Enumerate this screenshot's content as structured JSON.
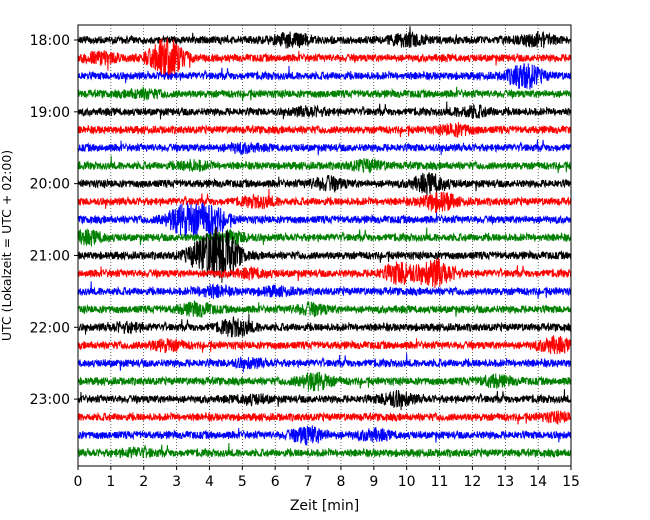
{
  "chart_data": {
    "type": "line",
    "title": "",
    "xlabel": "Zeit  [min]",
    "ylabel": "UTC (Lokalzeit = UTC + 02:00)",
    "xlim": [
      0,
      15
    ],
    "x_ticks": [
      "0",
      "1",
      "2",
      "3",
      "4",
      "5",
      "6",
      "7",
      "8",
      "9",
      "10",
      "11",
      "12",
      "13",
      "14",
      "15"
    ],
    "y_tick_labels": [
      "18:00",
      "19:00",
      "20:00",
      "21:00",
      "22:00",
      "23:00"
    ],
    "grid": {
      "vertical": true,
      "horizontal": false,
      "style": "dotted"
    },
    "trace_interval_minutes": 15,
    "colors": [
      "#000000",
      "#ff0000",
      "#0000ff",
      "#008000"
    ],
    "traces": [
      {
        "start": "18:00",
        "color": "#000000",
        "bursts": [
          {
            "t": 6.5,
            "amp": 6
          },
          {
            "t": 10.0,
            "amp": 5
          },
          {
            "t": 14.0,
            "amp": 5
          }
        ]
      },
      {
        "start": "18:15",
        "color": "#ff0000",
        "bursts": [
          {
            "t": 2.7,
            "amp": 18
          },
          {
            "t": 0.7,
            "amp": 4
          }
        ]
      },
      {
        "start": "18:30",
        "color": "#0000ff",
        "bursts": [
          {
            "t": 13.6,
            "amp": 11
          }
        ]
      },
      {
        "start": "18:45",
        "color": "#008000",
        "bursts": [
          {
            "t": 2.0,
            "amp": 3
          }
        ]
      },
      {
        "start": "19:00",
        "color": "#000000",
        "bursts": [
          {
            "t": 7.0,
            "amp": 3
          },
          {
            "t": 12.0,
            "amp": 4
          }
        ]
      },
      {
        "start": "19:15",
        "color": "#ff0000",
        "bursts": [
          {
            "t": 11.5,
            "amp": 4
          }
        ]
      },
      {
        "start": "19:30",
        "color": "#0000ff",
        "bursts": [
          {
            "t": 5.0,
            "amp": 3
          }
        ]
      },
      {
        "start": "19:45",
        "color": "#008000",
        "bursts": [
          {
            "t": 3.5,
            "amp": 3
          },
          {
            "t": 8.8,
            "amp": 4
          }
        ]
      },
      {
        "start": "20:00",
        "color": "#000000",
        "bursts": [
          {
            "t": 7.6,
            "amp": 5
          },
          {
            "t": 10.7,
            "amp": 8
          }
        ]
      },
      {
        "start": "20:15",
        "color": "#ff0000",
        "bursts": [
          {
            "t": 11.0,
            "amp": 8
          },
          {
            "t": 5.5,
            "amp": 4
          }
        ]
      },
      {
        "start": "20:30",
        "color": "#0000ff",
        "bursts": [
          {
            "t": 3.2,
            "amp": 13
          },
          {
            "t": 4.0,
            "amp": 13
          }
        ]
      },
      {
        "start": "20:45",
        "color": "#008000",
        "bursts": [
          {
            "t": 0.3,
            "amp": 5
          },
          {
            "t": 4.7,
            "amp": 4
          }
        ]
      },
      {
        "start": "21:00",
        "color": "#000000",
        "bursts": [
          {
            "t": 3.8,
            "amp": 12
          },
          {
            "t": 4.4,
            "amp": 22
          }
        ]
      },
      {
        "start": "21:15",
        "color": "#ff0000",
        "bursts": [
          {
            "t": 9.8,
            "amp": 9
          },
          {
            "t": 10.9,
            "amp": 12
          },
          {
            "t": 5.3,
            "amp": 3
          }
        ]
      },
      {
        "start": "21:30",
        "color": "#0000ff",
        "bursts": [
          {
            "t": 4.1,
            "amp": 4
          },
          {
            "t": 6.0,
            "amp": 3
          }
        ]
      },
      {
        "start": "21:45",
        "color": "#008000",
        "bursts": [
          {
            "t": 3.6,
            "amp": 5
          },
          {
            "t": 7.1,
            "amp": 4
          }
        ]
      },
      {
        "start": "22:00",
        "color": "#000000",
        "bursts": [
          {
            "t": 4.8,
            "amp": 7
          },
          {
            "t": 1.5,
            "amp": 3
          }
        ]
      },
      {
        "start": "22:15",
        "color": "#ff0000",
        "bursts": [
          {
            "t": 14.5,
            "amp": 6
          },
          {
            "t": 2.7,
            "amp": 4
          }
        ]
      },
      {
        "start": "22:30",
        "color": "#0000ff",
        "bursts": [
          {
            "t": 5.2,
            "amp": 3
          }
        ]
      },
      {
        "start": "22:45",
        "color": "#008000",
        "bursts": [
          {
            "t": 7.2,
            "amp": 7
          },
          {
            "t": 12.7,
            "amp": 4
          }
        ]
      },
      {
        "start": "23:00",
        "color": "#000000",
        "bursts": [
          {
            "t": 9.7,
            "amp": 6
          },
          {
            "t": 5.3,
            "amp": 3
          }
        ]
      },
      {
        "start": "23:15",
        "color": "#ff0000",
        "bursts": [
          {
            "t": 14.6,
            "amp": 3
          }
        ]
      },
      {
        "start": "23:30",
        "color": "#0000ff",
        "bursts": [
          {
            "t": 7.0,
            "amp": 7
          },
          {
            "t": 9.0,
            "amp": 4
          }
        ]
      },
      {
        "start": "23:45",
        "color": "#008000",
        "bursts": [
          {
            "t": 1.8,
            "amp": 3
          }
        ]
      }
    ]
  }
}
